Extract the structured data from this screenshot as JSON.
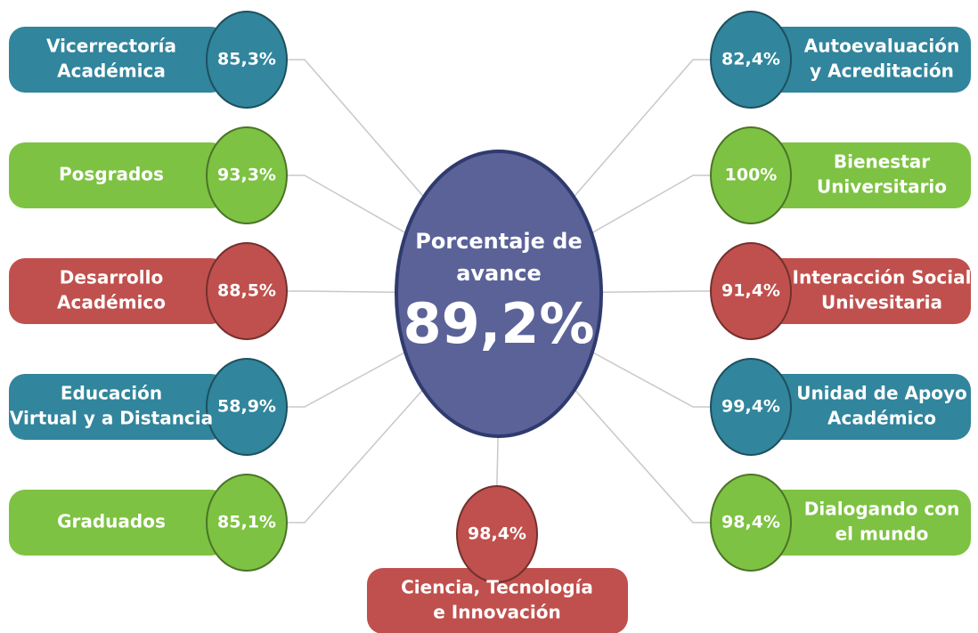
{
  "center": {
    "title": [
      "Porcentaje de",
      "avance"
    ],
    "value": "89,2%"
  },
  "nodes": [
    {
      "label": [
        "Vicerrectoría",
        "Académica"
      ],
      "value": "85,3%",
      "color": "#31859c"
    },
    {
      "label": [
        "Posgrados"
      ],
      "value": "93,3%",
      "color": "#7dc242"
    },
    {
      "label": [
        "Desarrollo",
        "Académico"
      ],
      "value": "88,5%",
      "color": "#c0504d"
    },
    {
      "label": [
        "Educación",
        "Virtual y a Distancia"
      ],
      "value": "58,9%",
      "color": "#31859c"
    },
    {
      "label": [
        "Graduados"
      ],
      "value": "85,1%",
      "color": "#7dc242"
    },
    {
      "label": [
        "Autoevaluación",
        "y Acreditación"
      ],
      "value": "82,4%",
      "color": "#31859c"
    },
    {
      "label": [
        "Bienestar",
        "Universitario"
      ],
      "value": "100%",
      "color": "#7dc242"
    },
    {
      "label": [
        "Interacción Social",
        "Univesitaria"
      ],
      "value": "91,4%",
      "color": "#c0504d"
    },
    {
      "label": [
        "Unidad de Apoyo",
        "Académico"
      ],
      "value": "99,4%",
      "color": "#31859c"
    },
    {
      "label": [
        "Dialogando con",
        "el mundo"
      ],
      "value": "98,4%",
      "color": "#7dc242"
    },
    {
      "label": [
        "Ciencia, Tecnología",
        "e Innovación"
      ],
      "value": "98,4%",
      "color": "#c0504d"
    }
  ]
}
